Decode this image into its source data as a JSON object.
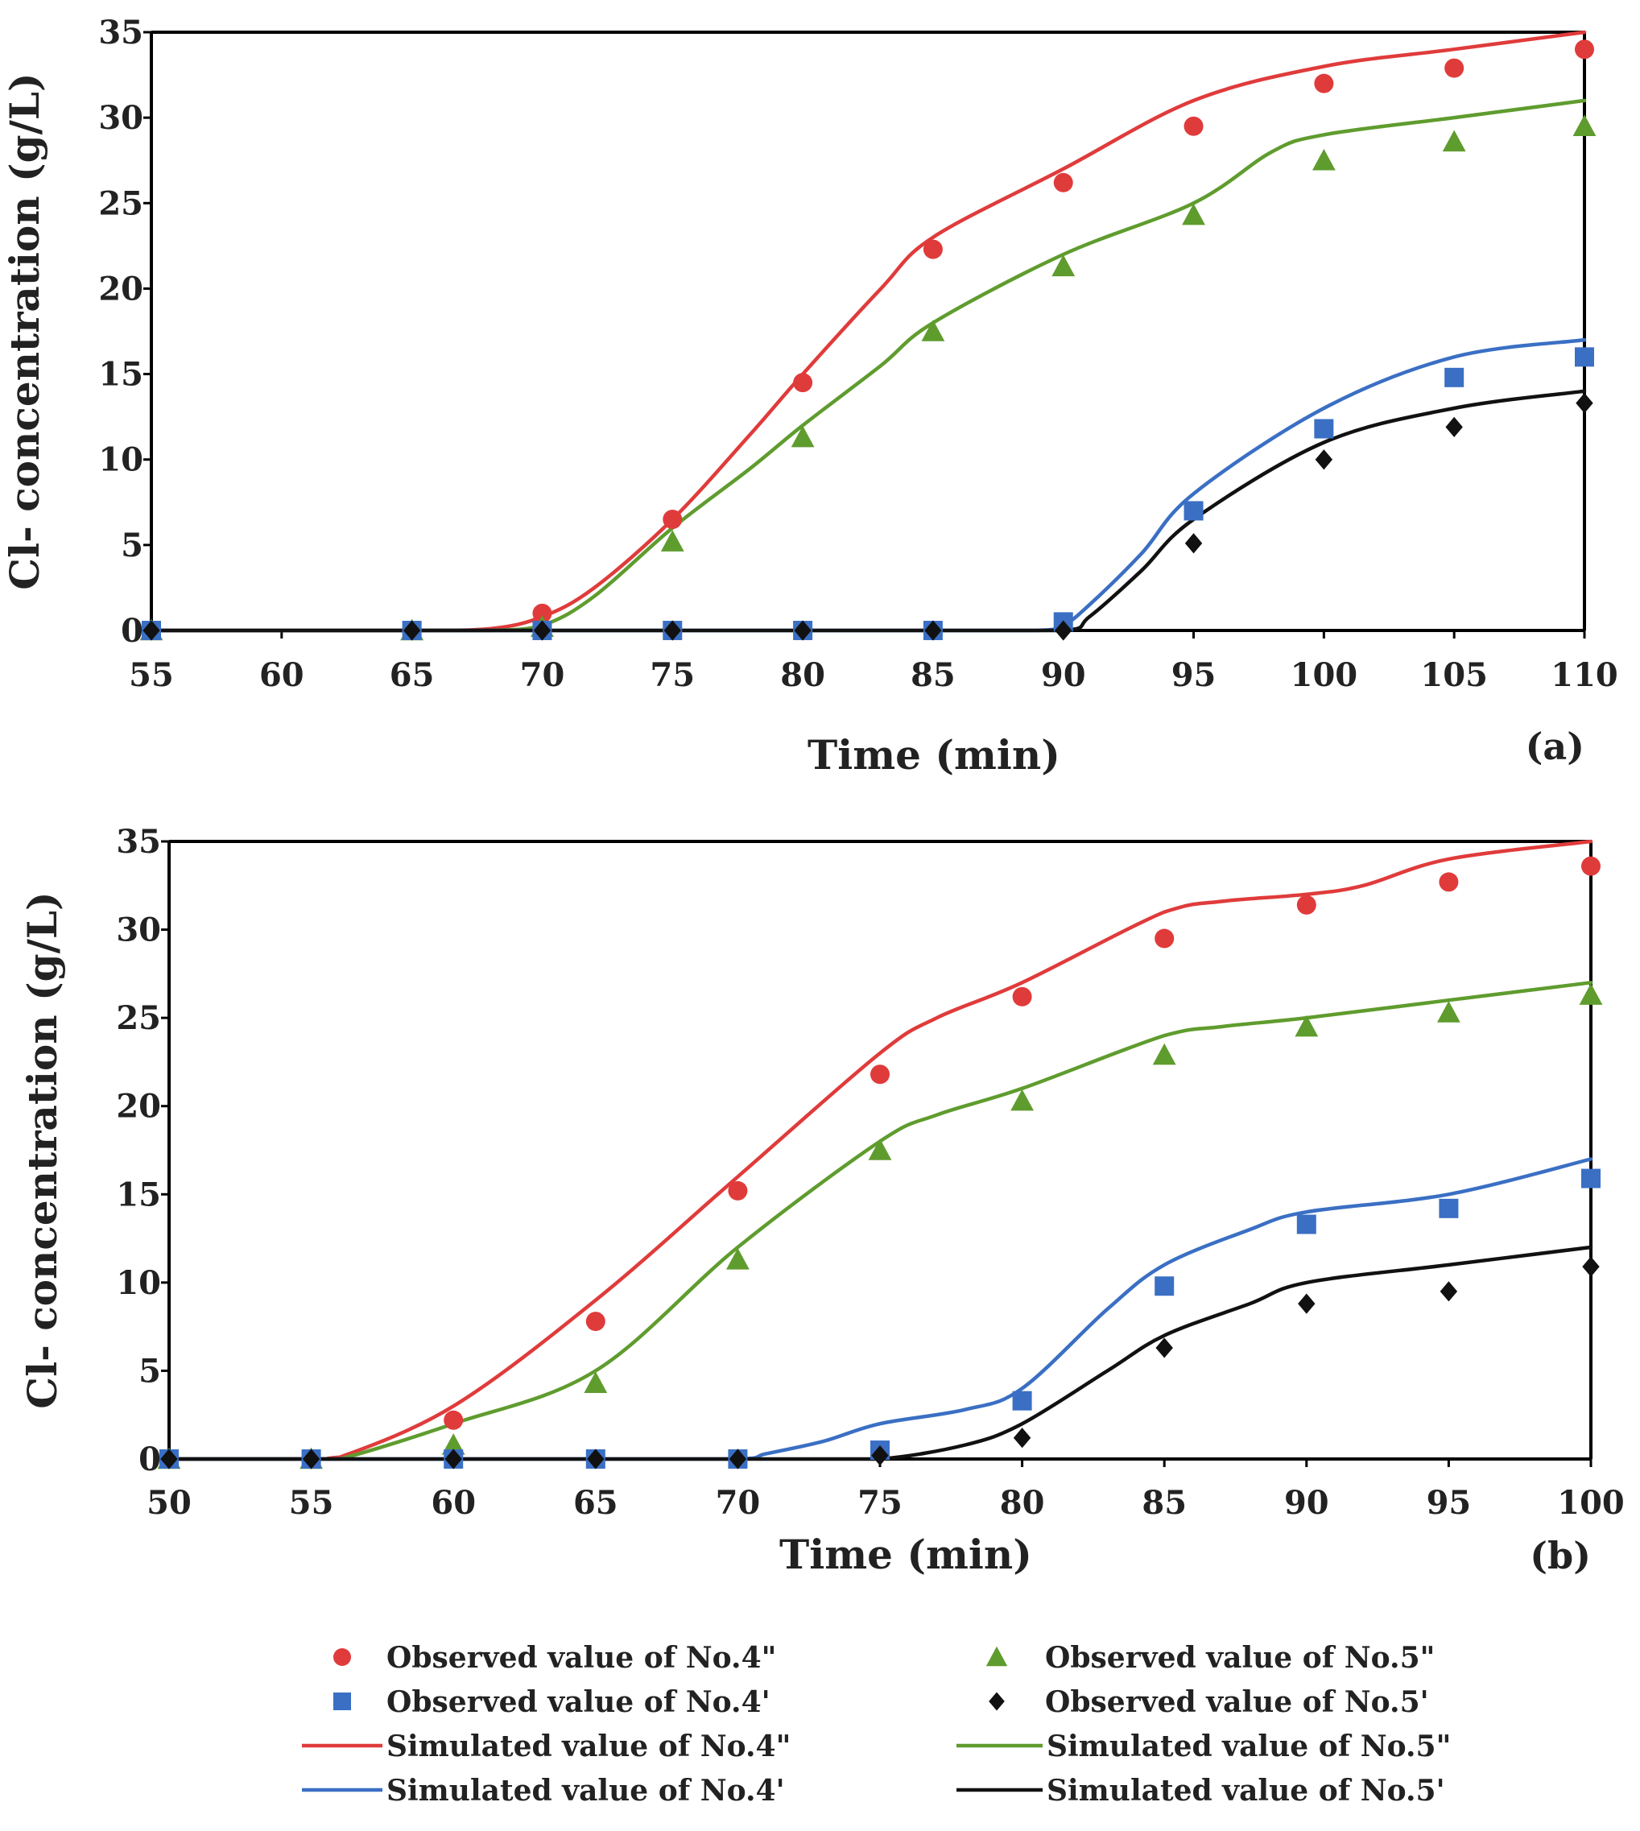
{
  "chart_data": [
    {
      "type": "line",
      "panel_label": "(a)",
      "xlabel": "Time (min)",
      "ylabel": "Cl- concentration (g/L)",
      "xlim": [
        55,
        110
      ],
      "ylim": [
        0,
        35
      ],
      "xticks": [
        "55",
        "60",
        "65",
        "70",
        "75",
        "80",
        "85",
        "90",
        "95",
        "100",
        "105",
        "110"
      ],
      "yticks": [
        "0",
        "5",
        "10",
        "15",
        "20",
        "25",
        "30",
        "35"
      ],
      "simulated": [
        {
          "name": "Simulated value of No.4\"",
          "color": "#e03b3b",
          "x": [
            55,
            65,
            68,
            70,
            72,
            75,
            78,
            80,
            83,
            85,
            90,
            95,
            100,
            105,
            110
          ],
          "y": [
            0,
            0,
            0.1,
            0.8,
            2.5,
            6.5,
            11.5,
            15,
            20,
            23,
            27,
            31,
            33,
            34,
            35
          ]
        },
        {
          "name": "Simulated value of No.5\"",
          "color": "#5f9c2e",
          "x": [
            55,
            65,
            68,
            70,
            72,
            75,
            78,
            80,
            83,
            85,
            90,
            95,
            98,
            100,
            105,
            110
          ],
          "y": [
            0,
            0,
            0,
            0.3,
            2,
            6,
            9.5,
            12,
            15.5,
            18,
            22,
            25,
            28,
            29,
            30,
            31
          ]
        },
        {
          "name": "Simulated value of No.4'",
          "color": "#3a6fc4",
          "x": [
            55,
            65,
            70,
            75,
            80,
            85,
            89,
            90,
            91,
            93,
            95,
            100,
            105,
            110
          ],
          "y": [
            0,
            0,
            0,
            0,
            0,
            0,
            0,
            0.3,
            1.5,
            4.5,
            8,
            13,
            16,
            17
          ]
        },
        {
          "name": "Simulated value of No.5'",
          "color": "#111111",
          "x": [
            55,
            65,
            70,
            75,
            80,
            85,
            90,
            91,
            93,
            95,
            100,
            105,
            110
          ],
          "y": [
            0,
            0,
            0,
            0,
            0,
            0,
            0,
            0.8,
            3.5,
            6.5,
            11,
            13,
            14
          ]
        }
      ],
      "observed": [
        {
          "name": "Observed value of No.4\"",
          "color": "#e03b3b",
          "marker": "circle",
          "x": [
            55,
            65,
            70,
            75,
            80,
            85,
            90,
            95,
            100,
            105,
            110
          ],
          "y": [
            0,
            0,
            1.0,
            6.5,
            14.5,
            22.3,
            26.2,
            29.5,
            32,
            32.9,
            34
          ]
        },
        {
          "name": "Observed value of No.5\"",
          "color": "#5f9c2e",
          "marker": "triangle",
          "x": [
            55,
            65,
            70,
            75,
            80,
            85,
            90,
            95,
            100,
            105,
            110
          ],
          "y": [
            0,
            0,
            0.2,
            5.2,
            11.3,
            17.5,
            21.3,
            24.3,
            27.5,
            28.6,
            29.5
          ]
        },
        {
          "name": "Observed value of No.4'",
          "color": "#3a6fc4",
          "marker": "square",
          "x": [
            55,
            65,
            70,
            75,
            80,
            85,
            90,
            95,
            100,
            105,
            110
          ],
          "y": [
            0,
            0,
            0,
            0,
            0,
            0,
            0.5,
            7,
            11.8,
            14.8,
            16
          ]
        },
        {
          "name": "Observed value of No.5'",
          "color": "#111111",
          "marker": "diamond",
          "x": [
            55,
            65,
            70,
            75,
            80,
            85,
            90,
            95,
            100,
            105,
            110
          ],
          "y": [
            0,
            0,
            0,
            0,
            0,
            0,
            0,
            5.1,
            10,
            11.9,
            13.3
          ]
        }
      ]
    },
    {
      "type": "line",
      "panel_label": "(b)",
      "xlabel": "Time (min)",
      "ylabel": "Cl- concentration (g/L)",
      "xlim": [
        50,
        100
      ],
      "ylim": [
        0,
        35
      ],
      "xticks": [
        "50",
        "55",
        "60",
        "65",
        "70",
        "75",
        "80",
        "85",
        "90",
        "95",
        "100"
      ],
      "yticks": [
        "0",
        "5",
        "10",
        "15",
        "20",
        "25",
        "30",
        "35"
      ],
      "simulated": [
        {
          "name": "Simulated value of No.4\"",
          "color": "#e03b3b",
          "x": [
            50,
            55,
            56,
            60,
            65,
            70,
            75,
            77,
            80,
            85,
            87,
            90,
            92,
            95,
            100
          ],
          "y": [
            0,
            0,
            0.1,
            3,
            9,
            16,
            23,
            25,
            27,
            31,
            31.6,
            32,
            32.5,
            34,
            35
          ]
        },
        {
          "name": "Simulated value of No.5\"",
          "color": "#5f9c2e",
          "x": [
            50,
            55,
            56,
            60,
            65,
            70,
            75,
            77,
            80,
            85,
            87,
            90,
            95,
            100
          ],
          "y": [
            0,
            0,
            0,
            2,
            5,
            12,
            18,
            19.5,
            21,
            24,
            24.5,
            25,
            26,
            27
          ]
        },
        {
          "name": "Simulated value of No.4'",
          "color": "#3a6fc4",
          "x": [
            50,
            55,
            60,
            65,
            70,
            71,
            73,
            75,
            78,
            80,
            83,
            85,
            88,
            90,
            95,
            100
          ],
          "y": [
            0,
            0,
            0,
            0,
            0,
            0.3,
            1,
            2,
            2.8,
            4,
            8.5,
            11,
            13,
            14,
            15,
            17
          ]
        },
        {
          "name": "Simulated value of No.5'",
          "color": "#111111",
          "x": [
            50,
            55,
            60,
            65,
            70,
            72,
            75,
            78,
            80,
            83,
            85,
            88,
            90,
            95,
            100
          ],
          "y": [
            0,
            0,
            0,
            0,
            0,
            0,
            0,
            0.8,
            2,
            5,
            7,
            8.8,
            10,
            11,
            12
          ]
        }
      ],
      "observed": [
        {
          "name": "Observed value of No.4\"",
          "color": "#e03b3b",
          "marker": "circle",
          "x": [
            50,
            55,
            60,
            65,
            70,
            75,
            80,
            85,
            90,
            95,
            100
          ],
          "y": [
            0,
            0,
            2.2,
            7.8,
            15.2,
            21.8,
            26.2,
            29.5,
            31.4,
            32.7,
            33.6
          ]
        },
        {
          "name": "Observed value of No.5\"",
          "color": "#5f9c2e",
          "marker": "triangle",
          "x": [
            50,
            55,
            60,
            65,
            70,
            75,
            80,
            85,
            90,
            95,
            100
          ],
          "y": [
            0,
            0,
            0.8,
            4.3,
            11.3,
            17.5,
            20.3,
            22.9,
            24.5,
            25.3,
            26.3
          ]
        },
        {
          "name": "Observed value of No.4'",
          "color": "#3a6fc4",
          "marker": "square",
          "x": [
            50,
            55,
            60,
            65,
            70,
            75,
            80,
            85,
            90,
            95,
            100
          ],
          "y": [
            0,
            0,
            0,
            0,
            0,
            0.5,
            3.3,
            9.8,
            13.3,
            14.2,
            15.9
          ]
        },
        {
          "name": "Observed value of No.5'",
          "color": "#111111",
          "marker": "diamond",
          "x": [
            50,
            55,
            60,
            65,
            70,
            75,
            80,
            85,
            90,
            95,
            100
          ],
          "y": [
            0,
            0,
            0,
            0,
            0,
            0.2,
            1.2,
            6.3,
            8.8,
            9.5,
            10.9
          ]
        }
      ]
    }
  ],
  "legend": {
    "items": [
      {
        "label": "Observed value of No.4\"",
        "kind": "marker",
        "marker": "circle",
        "color": "#e03b3b"
      },
      {
        "label": "Observed value of No.5\"",
        "kind": "marker",
        "marker": "triangle",
        "color": "#5f9c2e"
      },
      {
        "label": "Observed value of No.4'",
        "kind": "marker",
        "marker": "square",
        "color": "#3a6fc4"
      },
      {
        "label": "Observed value of No.5'",
        "kind": "marker",
        "marker": "diamond",
        "color": "#111111"
      },
      {
        "label": "Simulated value of No.4\"",
        "kind": "line",
        "color": "#e03b3b"
      },
      {
        "label": "Simulated value of No.5\"",
        "kind": "line",
        "color": "#5f9c2e"
      },
      {
        "label": "Simulated value of No.4'",
        "kind": "line",
        "color": "#3a6fc4"
      },
      {
        "label": "Simulated value of No.5'",
        "kind": "line",
        "color": "#111111"
      }
    ]
  }
}
